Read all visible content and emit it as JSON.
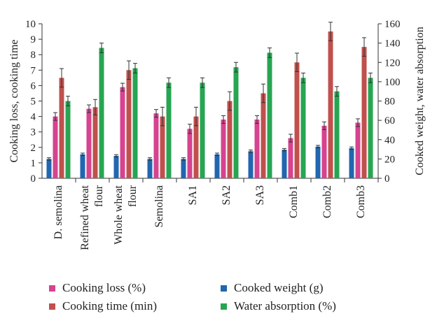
{
  "chart_data": {
    "type": "bar",
    "categories": [
      "D. semolina",
      "Refined wheat flour",
      "Whole wheat flour",
      "Semolina",
      "SA1",
      "SA2",
      "SA3",
      "Comb1",
      "Comb2",
      "Comb3"
    ],
    "category_lines": [
      [
        "D. semolina"
      ],
      [
        "Refined wheat",
        "flour"
      ],
      [
        "Whole wheat",
        "flour"
      ],
      [
        "Semolina"
      ],
      [
        "SA1"
      ],
      [
        "SA2"
      ],
      [
        "SA3"
      ],
      [
        "Comb1"
      ],
      [
        "Comb2"
      ],
      [
        "Comb3"
      ]
    ],
    "ylabel_left": "Cooking loss, cooking time",
    "ylabel_right": "Cooked weight, water absorption",
    "ylim_left": [
      0,
      10
    ],
    "ylim_right": [
      0,
      160
    ],
    "yticks_left": [
      "0",
      "1",
      "2",
      "3",
      "4",
      "5",
      "6",
      "7",
      "8",
      "9",
      "10"
    ],
    "yticks_right": [
      "0",
      "20",
      "40",
      "60",
      "80",
      "100",
      "120",
      "140",
      "160"
    ],
    "series": [
      {
        "name": "Cooked weight (g)",
        "axis": "left",
        "color": "#2166b0",
        "values": [
          1.25,
          1.55,
          1.45,
          1.25,
          1.25,
          1.55,
          1.75,
          1.85,
          2.05,
          1.95
        ],
        "errors": [
          0.08,
          0.08,
          0.08,
          0.08,
          0.08,
          0.08,
          0.08,
          0.08,
          0.08,
          0.08
        ]
      },
      {
        "name": "Cooking loss (%)",
        "axis": "left",
        "color": "#d6438f",
        "values": [
          4.0,
          4.5,
          5.9,
          4.2,
          3.2,
          3.8,
          3.8,
          2.6,
          3.4,
          3.6
        ],
        "errors": [
          0.25,
          0.25,
          0.25,
          0.25,
          0.3,
          0.25,
          0.25,
          0.25,
          0.25,
          0.25
        ]
      },
      {
        "name": "Cooking time (min)",
        "axis": "left",
        "color": "#c0504d",
        "values": [
          6.5,
          4.6,
          7.0,
          4.0,
          4.0,
          5.0,
          5.5,
          7.5,
          9.5,
          8.5
        ],
        "errors": [
          0.6,
          0.5,
          0.6,
          0.6,
          0.6,
          0.6,
          0.6,
          0.6,
          0.6,
          0.6
        ]
      },
      {
        "name": "Water absorption (%)",
        "axis": "right",
        "color": "#27a552",
        "values": [
          80,
          135,
          114,
          99,
          99,
          115,
          130,
          104,
          90,
          104
        ],
        "errors": [
          5,
          5,
          5,
          5,
          5,
          5,
          5,
          5,
          5,
          5
        ]
      }
    ],
    "legend": [
      {
        "name": "Cooking loss (%)",
        "color": "#d6438f"
      },
      {
        "name": "Cooked weight (g)",
        "color": "#2166b0"
      },
      {
        "name": "Cooking time (min)",
        "color": "#c0504d"
      },
      {
        "name": "Water absorption (%)",
        "color": "#27a552"
      }
    ],
    "legend_position": "bottom",
    "grid": false
  }
}
